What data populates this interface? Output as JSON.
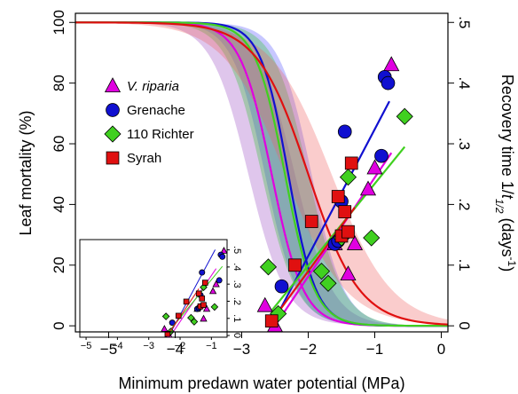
{
  "chart_data": {
    "type": "scatter",
    "xlabel": "Minimum predawn water potential (MPa)",
    "ylabel_left": "Leaf mortality (%)",
    "ylabel_right_parts": [
      "Recovery time 1/",
      "t",
      "1/2",
      " (days",
      "-1",
      ")"
    ],
    "xlim": [
      -5.5,
      0.1
    ],
    "ylim_left": [
      -2,
      103
    ],
    "ylim_right": [
      -0.01,
      0.515
    ],
    "xticks": [
      -5,
      -4,
      -3,
      -2,
      -1,
      0
    ],
    "yticks_left": [
      0,
      20,
      40,
      60,
      80,
      100
    ],
    "yticks_right": [
      0,
      0.1,
      0.2,
      0.3,
      0.4,
      0.5
    ],
    "legend_position": "left",
    "series": [
      {
        "name": "V. riparia",
        "color": "#e000e0",
        "marker": "triangle",
        "mortality_curve": {
          "midpoint": -2.55,
          "slope": 4.2
        },
        "band_color": "#9a4fc4",
        "recovery_points": [
          [
            -2.65,
            0.033
          ],
          [
            -2.5,
            0.0
          ],
          [
            -1.6,
            0.135
          ],
          [
            -1.4,
            0.085
          ],
          [
            -1.3,
            0.135
          ],
          [
            -1.1,
            0.225
          ],
          [
            -1.0,
            0.26
          ],
          [
            -0.75,
            0.43
          ]
        ],
        "recovery_line": [
          [
            -2.5,
            0.0
          ],
          [
            -0.75,
            0.285
          ]
        ]
      },
      {
        "name": "Grenache",
        "color": "#1010d0",
        "marker": "circle",
        "mortality_curve": {
          "midpoint": -2.3,
          "slope": 4.8
        },
        "band_color": "#5050ff",
        "recovery_points": [
          [
            -2.4,
            0.065
          ],
          [
            -1.6,
            0.135
          ],
          [
            -1.55,
            0.14
          ],
          [
            -1.5,
            0.205
          ],
          [
            -1.45,
            0.32
          ],
          [
            -0.9,
            0.28
          ],
          [
            -0.85,
            0.41
          ],
          [
            -0.8,
            0.4
          ]
        ],
        "recovery_line": [
          [
            -2.55,
            0.0
          ],
          [
            -0.78,
            0.37
          ]
        ]
      },
      {
        "name": "110 Richter",
        "color": "#40d020",
        "marker": "diamond",
        "mortality_curve": {
          "midpoint": -2.35,
          "slope": 4.5
        },
        "band_color": "#30c030",
        "recovery_points": [
          [
            -2.6,
            0.097
          ],
          [
            -2.45,
            0.02
          ],
          [
            -1.8,
            0.09
          ],
          [
            -1.7,
            0.07
          ],
          [
            -1.5,
            0.145
          ],
          [
            -1.4,
            0.245
          ],
          [
            -1.05,
            0.145
          ],
          [
            -0.55,
            0.345
          ]
        ],
        "recovery_line": [
          [
            -2.55,
            0.025
          ],
          [
            -0.55,
            0.295
          ]
        ]
      },
      {
        "name": "Syrah",
        "color": "#e01010",
        "marker": "square",
        "mortality_curve": {
          "midpoint": -2.0,
          "slope": 2.6
        },
        "band_color": "#f06060",
        "recovery_points": [
          [
            -2.55,
            0.008
          ],
          [
            -2.2,
            0.1
          ],
          [
            -1.95,
            0.172
          ],
          [
            -1.55,
            0.213
          ],
          [
            -1.5,
            0.148
          ],
          [
            -1.45,
            0.188
          ],
          [
            -1.4,
            0.155
          ],
          [
            -1.35,
            0.268
          ]
        ],
        "recovery_line": [
          [
            -2.6,
            0.0
          ],
          [
            -1.3,
            0.195
          ]
        ]
      }
    ],
    "inset": {
      "xticks": [
        -5,
        -4,
        -3,
        -2,
        -1
      ],
      "yticks": [
        0,
        0.1,
        0.2,
        0.3,
        0.4,
        0.5
      ],
      "xlim": [
        -5.2,
        -0.5
      ],
      "ylim": [
        -0.01,
        0.56
      ]
    }
  }
}
